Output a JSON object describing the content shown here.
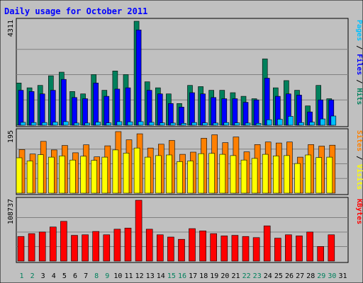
{
  "chart_data": {
    "type": "bar",
    "title": "Daily usage for October 2011",
    "categories": [
      "1",
      "2",
      "3",
      "4",
      "5",
      "6",
      "7",
      "8",
      "9",
      "10",
      "11",
      "12",
      "13",
      "14",
      "15",
      "16",
      "17",
      "18",
      "19",
      "20",
      "21",
      "22",
      "23",
      "24",
      "25",
      "26",
      "27",
      "28",
      "29",
      "30",
      "31"
    ],
    "weekend_days": [
      "1",
      "2",
      "8",
      "9",
      "15",
      "16",
      "22",
      "23",
      "29",
      "30"
    ],
    "panels": [
      {
        "name": "hits-files-pages",
        "max_label": "4311",
        "ylim": [
          0,
          4311
        ],
        "axis_labels": [
          {
            "text": "Pages",
            "color": "#00c0ff"
          },
          {
            "text": "Files",
            "color": "#0000ff"
          },
          {
            "text": "Hits",
            "color": "#00805c"
          }
        ],
        "separator": " / ",
        "series": [
          {
            "name": "Hits",
            "color": "#00805c",
            "values": [
              1750,
              1550,
              1650,
              2050,
              2200,
              1400,
              1300,
              2100,
              1450,
              2250,
              2100,
              4311,
              1800,
              1550,
              1300,
              900,
              1650,
              1600,
              1450,
              1450,
              1350,
              1200,
              1100,
              2750,
              1550,
              1850,
              1450,
              800,
              1650,
              1100,
              0
            ]
          },
          {
            "name": "Files",
            "color": "#0000ff",
            "values": [
              1450,
              1400,
              1300,
              1450,
              1900,
              1150,
              1100,
              1750,
              1200,
              1500,
              1550,
              3950,
              1450,
              1300,
              900,
              750,
              1350,
              1300,
              1150,
              1100,
              1100,
              950,
              1050,
              1950,
              1200,
              1300,
              1250,
              550,
              1050,
              1050,
              0
            ]
          },
          {
            "name": "Pages",
            "color": "#00c0ff",
            "values": [
              120,
              110,
              110,
              130,
              150,
              90,
              90,
              130,
              100,
              150,
              140,
              150,
              120,
              100,
              90,
              80,
              110,
              100,
              90,
              110,
              100,
              90,
              80,
              230,
              250,
              370,
              110,
              130,
              260,
              380,
              0
            ]
          }
        ]
      },
      {
        "name": "visits-sites",
        "max_label": "195",
        "ylim": [
          0,
          195
        ],
        "axis_labels": [
          {
            "text": "Sites",
            "color": "#ff8000"
          },
          {
            "text": "Visits",
            "color": "#ffff00"
          }
        ],
        "separator": " / ",
        "series": [
          {
            "name": "Visits",
            "color": "#ff8000",
            "values": [
              138,
              124,
              164,
              137,
              151,
              128,
              153,
              115,
              150,
              195,
              169,
              188,
              143,
              155,
              167,
              123,
              130,
              174,
              185,
              160,
              178,
              131,
              154,
              162,
              159,
              162,
              114,
              154,
              149,
              152,
              0
            ]
          },
          {
            "name": "Sites",
            "color": "#ffff00",
            "values": [
              112,
              102,
              122,
              114,
              118,
              105,
              117,
              104,
              114,
              137,
              127,
              143,
              114,
              119,
              121,
              100,
              102,
              125,
              126,
              123,
              119,
              105,
              110,
              123,
              118,
              119,
              94,
              121,
              113,
              114,
              0
            ]
          }
        ]
      },
      {
        "name": "kbytes",
        "max_label": "108737",
        "ylim": [
          0,
          108737
        ],
        "axis_labels": [
          {
            "text": "KBytes",
            "color": "#ff0000"
          }
        ],
        "separator": "",
        "series": [
          {
            "name": "KBytes",
            "color": "#ff0000",
            "values": [
              44000,
              49000,
              52000,
              61000,
              71000,
              46000,
              47000,
              53000,
              47000,
              57000,
              59000,
              108737,
              57000,
              47000,
              43000,
              39000,
              58000,
              54000,
              49000,
              45000,
              46000,
              44000,
              42000,
              63000,
              41000,
              47000,
              45000,
              52000,
              26000,
              47000,
              0
            ]
          }
        ]
      }
    ]
  }
}
